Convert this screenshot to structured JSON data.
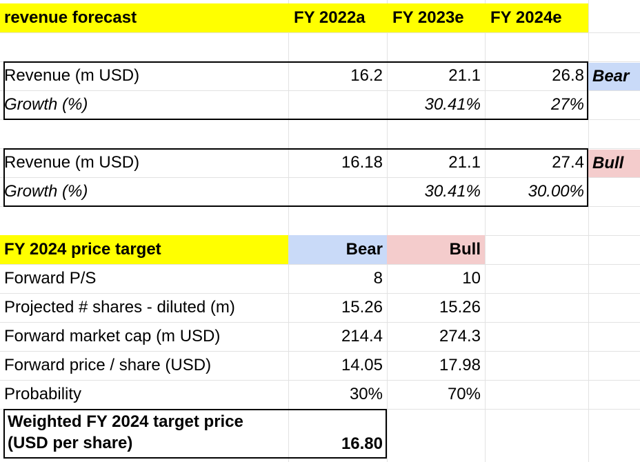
{
  "header": {
    "title": "revenue forecast",
    "years": [
      "FY 2022a",
      "FY 2023e",
      "FY 2024e"
    ]
  },
  "bear_scenario": {
    "revenue_label": "Revenue (m USD)",
    "revenue": [
      "16.2",
      "21.1",
      "26.8"
    ],
    "tag": "Bear",
    "growth_label": "Growth (%)",
    "growth": [
      "",
      "30.41%",
      "27%"
    ]
  },
  "bull_scenario": {
    "revenue_label": "Revenue (m USD)",
    "revenue": [
      "16.18",
      "21.1",
      "27.4"
    ],
    "tag": "Bull",
    "growth_label": "Growth (%)",
    "growth": [
      "",
      "30.41%",
      "30.00%"
    ]
  },
  "price_target": {
    "title": "FY 2024 price target",
    "col_bear": "Bear",
    "col_bull": "Bull",
    "rows": [
      {
        "label": "Forward P/S",
        "bear": "8",
        "bull": "10"
      },
      {
        "label": "Projected # shares - diluted (m)",
        "bear": "15.26",
        "bull": "15.26"
      },
      {
        "label": "Forward market cap (m USD)",
        "bear": "214.4",
        "bull": "274.3"
      },
      {
        "label": "Forward price / share (USD)",
        "bear": "14.05",
        "bull": "17.98"
      },
      {
        "label": "Probability",
        "bear": "30%",
        "bull": "70%"
      }
    ],
    "weighted_label": "Weighted FY 2024 target price (USD per share)",
    "weighted_value": "16.80"
  },
  "colors": {
    "header_yellow": "#ffff00",
    "bear_blue": "#c9daf8",
    "bull_pink": "#f4cccc",
    "gridline": "#e2e2e2"
  }
}
